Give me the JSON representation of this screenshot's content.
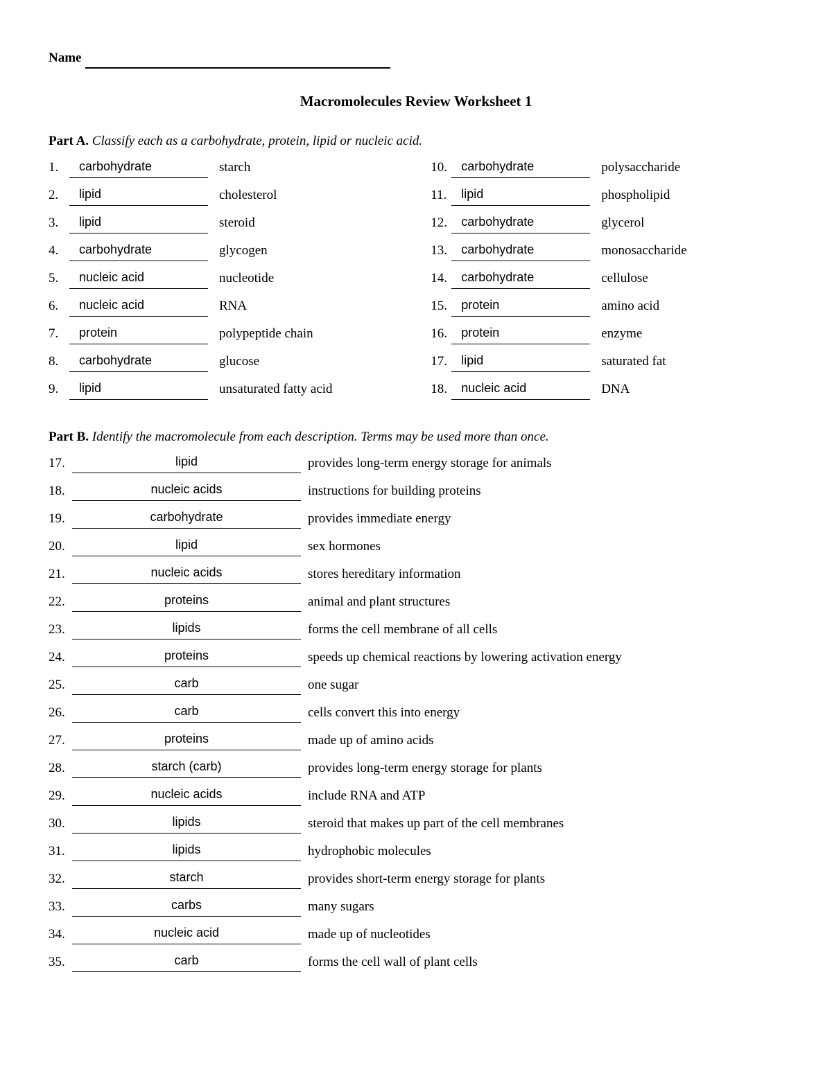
{
  "name_label": "Name",
  "title": "Macromolecules Review Worksheet 1",
  "partA": {
    "label": "Part A.",
    "instructions": "Classify each as a carbohydrate, protein, lipid or nucleic acid.",
    "left": [
      {
        "n": "1.",
        "ans": "carbohydrate",
        "term": "starch"
      },
      {
        "n": "2.",
        "ans": "lipid",
        "term": "cholesterol"
      },
      {
        "n": "3.",
        "ans": "lipid",
        "term": "steroid"
      },
      {
        "n": "4.",
        "ans": "carbohydrate",
        "term": "glycogen"
      },
      {
        "n": "5.",
        "ans": "nucleic acid",
        "term": "nucleotide"
      },
      {
        "n": "6.",
        "ans": "nucleic acid",
        "term": "RNA"
      },
      {
        "n": "7.",
        "ans": "protein",
        "term": "polypeptide chain"
      },
      {
        "n": "8.",
        "ans": "carbohydrate",
        "term": "glucose"
      },
      {
        "n": "9.",
        "ans": "lipid",
        "term": "unsaturated fatty acid"
      }
    ],
    "right": [
      {
        "n": "10.",
        "ans": "carbohydrate",
        "term": "polysaccharide"
      },
      {
        "n": "11.",
        "ans": "lipid",
        "term": "phospholipid"
      },
      {
        "n": "12.",
        "ans": "carbohydrate",
        "term": "glycerol"
      },
      {
        "n": "13.",
        "ans": "carbohydrate",
        "term": "monosaccharide"
      },
      {
        "n": "14.",
        "ans": "carbohydrate",
        "term": "cellulose"
      },
      {
        "n": "15.",
        "ans": "protein",
        "term": "amino acid"
      },
      {
        "n": "16.",
        "ans": "protein",
        "term": "enzyme"
      },
      {
        "n": "17.",
        "ans": "lipid",
        "term": "saturated fat"
      },
      {
        "n": "18.",
        "ans": "nucleic acid",
        "term": "DNA"
      }
    ]
  },
  "partB": {
    "label": "Part B.",
    "instructions": "Identify the macromolecule from each description. Terms may be used more than once.",
    "items": [
      {
        "n": "17.",
        "ans": "lipid",
        "desc": "provides long-term energy storage for animals"
      },
      {
        "n": "18.",
        "ans": "nucleic acids",
        "desc": "instructions for building proteins"
      },
      {
        "n": "19.",
        "ans": "carbohydrate",
        "desc": "provides immediate energy"
      },
      {
        "n": "20.",
        "ans": "lipid",
        "desc": "sex hormones"
      },
      {
        "n": "21.",
        "ans": "nucleic acids",
        "desc": "stores hereditary information"
      },
      {
        "n": "22.",
        "ans": "proteins",
        "desc": "animal and plant structures"
      },
      {
        "n": "23.",
        "ans": "lipids",
        "desc": "forms the cell membrane of all cells"
      },
      {
        "n": "24.",
        "ans": "proteins",
        "desc": "speeds up chemical reactions by lowering activation energy"
      },
      {
        "n": "25.",
        "ans": "carb",
        "desc": "one sugar"
      },
      {
        "n": "26.",
        "ans": "carb",
        "desc": "cells convert this into energy"
      },
      {
        "n": "27.",
        "ans": "proteins",
        "desc": "made up of amino acids"
      },
      {
        "n": "28.",
        "ans": "starch (carb)",
        "desc": "provides long-term energy storage for plants"
      },
      {
        "n": "29.",
        "ans": "nucleic acids",
        "desc": "include RNA and ATP"
      },
      {
        "n": "30.",
        "ans": "lipids",
        "desc": "steroid that makes up part of the cell membranes"
      },
      {
        "n": "31.",
        "ans": "lipids",
        "desc": "hydrophobic molecules"
      },
      {
        "n": "32.",
        "ans": "starch",
        "desc": "provides short-term energy storage for plants"
      },
      {
        "n": "33.",
        "ans": "carbs",
        "desc": "many sugars"
      },
      {
        "n": "34.",
        "ans": "nucleic acid",
        "desc": "made up of nucleotides"
      },
      {
        "n": "35.",
        "ans": "carb",
        "desc": "forms the cell wall of plant cells"
      }
    ]
  }
}
